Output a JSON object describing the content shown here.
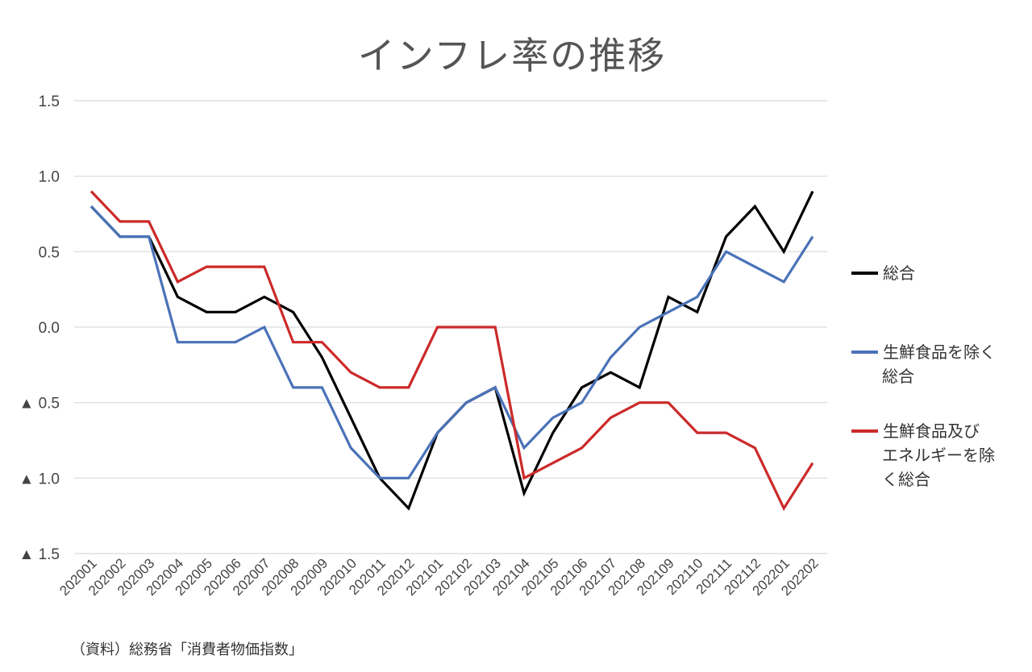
{
  "chart_data": {
    "type": "line",
    "title": "インフレ率の推移",
    "source": "（資料）総務省「消費者物価指数」",
    "categories": [
      "202001",
      "202002",
      "202003",
      "202004",
      "202005",
      "202006",
      "202007",
      "202008",
      "202009",
      "202010",
      "202011",
      "202012",
      "202101",
      "202102",
      "202103",
      "202104",
      "202105",
      "202106",
      "202107",
      "202108",
      "202109",
      "202110",
      "202111",
      "202112",
      "202201",
      "202202"
    ],
    "yticks": [
      {
        "value": 1.5,
        "label": "1.5"
      },
      {
        "value": 1.0,
        "label": "1.0"
      },
      {
        "value": 0.5,
        "label": "0.5"
      },
      {
        "value": 0.0,
        "label": "0.0"
      },
      {
        "value": -0.5,
        "label": "▲ 0.5"
      },
      {
        "value": -1.0,
        "label": "▲ 1.0"
      },
      {
        "value": -1.5,
        "label": "▲ 1.5"
      }
    ],
    "ylim": [
      -1.5,
      1.5
    ],
    "grid": true,
    "legend_position": "right",
    "series": [
      {
        "name": "総合",
        "legend_lines": [
          "総合"
        ],
        "color": "#000000",
        "values": [
          0.8,
          0.6,
          0.6,
          0.2,
          0.1,
          0.1,
          0.2,
          0.1,
          -0.2,
          -0.6,
          -1.0,
          -1.2,
          -0.7,
          -0.5,
          -0.4,
          -1.1,
          -0.7,
          -0.4,
          -0.3,
          -0.4,
          0.2,
          0.1,
          0.6,
          0.8,
          0.5,
          0.9
        ]
      },
      {
        "name": "生鮮食品を除く総合",
        "legend_lines": [
          "生鮮食品を除く",
          "総合"
        ],
        "color": "#4a72b8",
        "values": [
          0.8,
          0.6,
          0.6,
          -0.1,
          -0.1,
          -0.1,
          0.0,
          -0.4,
          -0.4,
          -0.8,
          -1.0,
          -1.0,
          -0.7,
          -0.5,
          -0.4,
          -0.8,
          -0.6,
          -0.5,
          -0.2,
          0.0,
          0.1,
          0.2,
          0.5,
          0.4,
          0.3,
          0.6
        ]
      },
      {
        "name": "生鮮食品及びエネルギーを除く総合",
        "legend_lines": [
          "生鮮食品及び",
          "エネルギーを除",
          "く総合"
        ],
        "color": "#cc2a2a",
        "values": [
          0.9,
          0.7,
          0.7,
          0.3,
          0.4,
          0.4,
          0.4,
          -0.1,
          -0.1,
          -0.3,
          -0.4,
          -0.4,
          0.0,
          0.0,
          0.0,
          -1.0,
          -0.9,
          -0.8,
          -0.6,
          -0.5,
          -0.5,
          -0.7,
          -0.7,
          -0.8,
          -1.2,
          -0.9
        ]
      }
    ]
  }
}
